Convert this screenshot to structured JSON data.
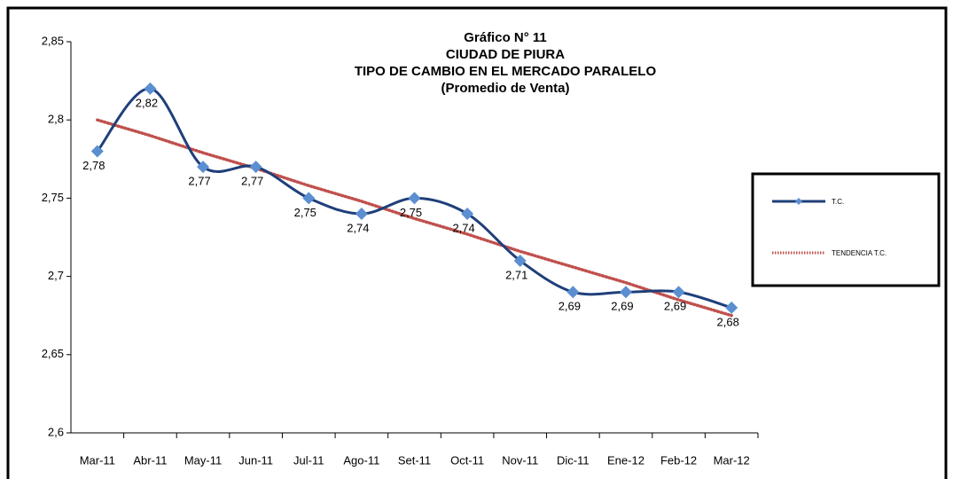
{
  "chart_data": {
    "type": "line",
    "title": "Gráfico N° 11",
    "subtitle": [
      "CIUDAD DE PIURA",
      "TIPO DE CAMBIO EN EL MERCADO PARALELO",
      "(Promedio de Venta)"
    ],
    "categories": [
      "Mar-11",
      "Abr-11",
      "May-11",
      "Jun-11",
      "Jul-11",
      "Ago-11",
      "Set-11",
      "Oct-11",
      "Nov-11",
      "Dic-11",
      "Ene-12",
      "Feb-12",
      "Mar-12"
    ],
    "series": [
      {
        "name": "T.C.",
        "color": "#1f3f7a",
        "marker_color": "#5b8fd1",
        "values": [
          2.78,
          2.82,
          2.77,
          2.77,
          2.75,
          2.74,
          2.75,
          2.74,
          2.71,
          2.69,
          2.69,
          2.69,
          2.68
        ],
        "value_labels": [
          "2,78",
          "2,82",
          "2,77",
          "2,77",
          "2,75",
          "2,74",
          "2,75",
          "2,74",
          "2,71",
          "2,69",
          "2,69",
          "2,69",
          "2,68"
        ]
      },
      {
        "name": "TENDENCIA T.C.",
        "color": "#c0504d",
        "dotted": true,
        "values": [
          2.8,
          2.79,
          2.779,
          2.769,
          2.758,
          2.748,
          2.737,
          2.727,
          2.716,
          2.706,
          2.696,
          2.685,
          2.675
        ]
      }
    ],
    "ylim": [
      2.6,
      2.85
    ],
    "yticks": [
      {
        "value": 2.6,
        "label": "2,6"
      },
      {
        "value": 2.65,
        "label": "2,65"
      },
      {
        "value": 2.7,
        "label": "2,7"
      },
      {
        "value": 2.75,
        "label": "2,75"
      },
      {
        "value": 2.8,
        "label": "2,8"
      },
      {
        "value": 2.85,
        "label": "2,85"
      }
    ],
    "legend": "right"
  }
}
